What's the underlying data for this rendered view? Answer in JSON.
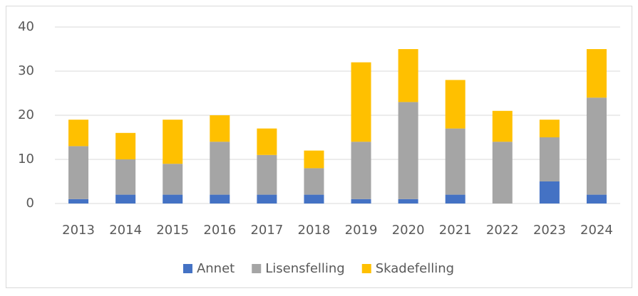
{
  "chart_data": {
    "type": "stacked_bar",
    "categories": [
      "2013",
      "2014",
      "2015",
      "2016",
      "2017",
      "2018",
      "2019",
      "2020",
      "2021",
      "2022",
      "2023",
      "2024"
    ],
    "series": [
      {
        "name": "Annet",
        "color": "#4472c4",
        "values": [
          1,
          2,
          2,
          2,
          2,
          2,
          1,
          1,
          2,
          0,
          5,
          2
        ]
      },
      {
        "name": "Lisensfelling",
        "color": "#a5a5a5",
        "values": [
          12,
          8,
          7,
          12,
          9,
          6,
          13,
          22,
          15,
          14,
          10,
          22
        ]
      },
      {
        "name": "Skadefelling",
        "color": "#ffc000",
        "values": [
          6,
          6,
          10,
          6,
          6,
          4,
          18,
          12,
          11,
          7,
          4,
          11
        ]
      }
    ],
    "ylim": [
      0,
      40
    ],
    "yticks": [
      0,
      10,
      20,
      30,
      40
    ],
    "grid": true,
    "legend": "bottom"
  }
}
